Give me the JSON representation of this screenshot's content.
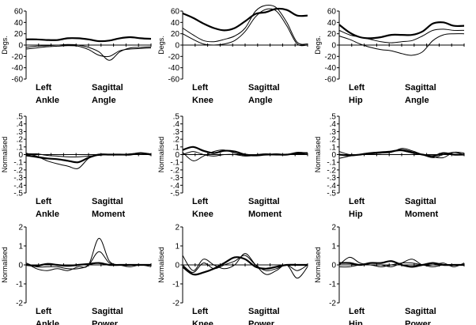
{
  "chart_data": [
    {
      "type": "line",
      "ylabel": "Degs.",
      "ylim": [
        -60,
        60
      ],
      "yticks": [
        60,
        40,
        20,
        0,
        -20,
        -40,
        -60
      ],
      "caption": [
        "Left",
        "Ankle",
        "Sagittal",
        "Angle"
      ],
      "series": [
        {
          "values": [
            10,
            10,
            9,
            9,
            12,
            12,
            10,
            7,
            8,
            12,
            14,
            12,
            11
          ]
        },
        {
          "values": [
            -4,
            -2,
            -1,
            0,
            1,
            0,
            -4,
            -12,
            -27,
            -12,
            -5,
            -4,
            -3
          ]
        },
        {
          "values": [
            -7,
            -5,
            -3,
            -2,
            -1,
            -2,
            -8,
            -18,
            -20,
            -10,
            -7,
            -6,
            -5
          ]
        }
      ]
    },
    {
      "type": "line",
      "ylabel": "Degs.",
      "ylim": [
        -60,
        60
      ],
      "yticks": [
        60,
        40,
        20,
        0,
        -20,
        -40,
        -60
      ],
      "caption": [
        "Left",
        "Knee",
        "Sagittal",
        "Angle"
      ],
      "series": [
        {
          "values": [
            56,
            48,
            38,
            30,
            26,
            30,
            42,
            55,
            58,
            64,
            62,
            52,
            52
          ]
        },
        {
          "values": [
            30,
            18,
            8,
            6,
            10,
            16,
            30,
            60,
            70,
            66,
            40,
            5,
            2
          ]
        },
        {
          "values": [
            20,
            10,
            2,
            0,
            2,
            8,
            24,
            50,
            63,
            60,
            34,
            2,
            0
          ]
        }
      ]
    },
    {
      "type": "line",
      "ylabel": "Degs.",
      "ylim": [
        -60,
        60
      ],
      "yticks": [
        60,
        40,
        20,
        0,
        -20,
        -40,
        -60
      ],
      "caption": [
        "Left",
        "Hip",
        "Sagittal",
        "Angle"
      ],
      "series": [
        {
          "values": [
            36,
            22,
            14,
            12,
            14,
            18,
            18,
            18,
            24,
            38,
            40,
            34,
            34
          ]
        },
        {
          "values": [
            16,
            10,
            2,
            -4,
            -8,
            -10,
            -15,
            -18,
            -12,
            8,
            18,
            20,
            20
          ]
        },
        {
          "values": [
            26,
            18,
            14,
            10,
            6,
            4,
            6,
            8,
            16,
            26,
            28,
            26,
            26
          ]
        }
      ]
    },
    {
      "type": "line",
      "ylabel": "Normalised",
      "ylim": [
        -0.5,
        0.5
      ],
      "yticks": [
        0.5,
        0.4,
        0.3,
        0.2,
        0.1,
        0.0,
        -0.1,
        -0.2,
        -0.3,
        -0.4,
        -0.5
      ],
      "caption": [
        "Left",
        "Ankle",
        "Sagittal",
        "Moment"
      ],
      "series": [
        {
          "values": [
            -0.01,
            -0.03,
            -0.05,
            -0.06,
            -0.08,
            -0.1,
            -0.04,
            0.0,
            0.0,
            0.0,
            0.0,
            0.02,
            0.0
          ]
        },
        {
          "values": [
            0.02,
            -0.02,
            -0.08,
            -0.12,
            -0.15,
            -0.18,
            -0.05,
            0.0,
            0.0,
            0.0,
            0.0,
            0.02,
            0.0
          ]
        },
        {
          "values": [
            0.01,
            0.01,
            -0.01,
            -0.02,
            -0.03,
            -0.03,
            -0.02,
            -0.01,
            0.0,
            0.0,
            0.01,
            0.02,
            0.01
          ]
        }
      ]
    },
    {
      "type": "line",
      "ylabel": "Normalised",
      "ylim": [
        -0.5,
        0.5
      ],
      "yticks": [
        0.5,
        0.4,
        0.3,
        0.2,
        0.1,
        0.0,
        -0.1,
        -0.2,
        -0.3,
        -0.4,
        -0.5
      ],
      "caption": [
        "Left",
        "Knee",
        "Sagittal",
        "Moment"
      ],
      "series": [
        {
          "values": [
            0.06,
            0.1,
            0.05,
            0.02,
            0.05,
            0.04,
            0.0,
            -0.01,
            0.0,
            0.0,
            0.0,
            0.02,
            0.02
          ]
        },
        {
          "values": [
            0.03,
            -0.08,
            -0.02,
            0.04,
            0.06,
            0.02,
            -0.01,
            0.0,
            0.01,
            0.0,
            0.0,
            0.03,
            0.02
          ]
        },
        {
          "values": [
            0.0,
            0.04,
            0.0,
            -0.02,
            0.0,
            0.0,
            -0.02,
            -0.01,
            0.0,
            0.01,
            0.0,
            0.01,
            0.0
          ]
        }
      ]
    },
    {
      "type": "line",
      "ylabel": "Normalised",
      "ylim": [
        -0.5,
        0.5
      ],
      "yticks": [
        0.5,
        0.4,
        0.3,
        0.2,
        0.1,
        0.0,
        -0.1,
        -0.2,
        -0.3,
        -0.4,
        -0.5
      ],
      "caption": [
        "Left",
        "Hip",
        "Sagittal",
        "Moment"
      ],
      "series": [
        {
          "values": [
            0.0,
            -0.01,
            0.0,
            0.02,
            0.03,
            0.04,
            0.06,
            0.03,
            0.0,
            -0.02,
            0.02,
            0.0,
            0.0
          ]
        },
        {
          "values": [
            -0.05,
            -0.02,
            0.0,
            0.01,
            0.02,
            0.03,
            0.08,
            0.05,
            0.0,
            -0.04,
            0.0,
            0.03,
            0.0
          ]
        },
        {
          "values": [
            0.04,
            0.0,
            0.0,
            0.01,
            0.02,
            0.04,
            0.05,
            0.02,
            0.0,
            -0.03,
            -0.04,
            0.03,
            0.02
          ]
        }
      ]
    },
    {
      "type": "line",
      "ylabel": "Normalised",
      "ylim": [
        -2,
        2
      ],
      "yticks": [
        2,
        1,
        0,
        -1,
        -2
      ],
      "caption": [
        "Left",
        "Ankle",
        "Sagittal",
        "Power"
      ],
      "series": [
        {
          "values": [
            0.0,
            -0.05,
            0.05,
            0.0,
            -0.05,
            0.0,
            0.05,
            0.1,
            0.0,
            0.0,
            0.0,
            0.0,
            0.0
          ]
        },
        {
          "values": [
            0.1,
            -0.2,
            -0.3,
            -0.2,
            -0.3,
            -0.1,
            0.0,
            1.4,
            0.2,
            0.0,
            -0.1,
            0.0,
            -0.1
          ]
        },
        {
          "values": [
            0.1,
            -0.1,
            -0.1,
            -0.1,
            -0.2,
            -0.2,
            0.0,
            0.7,
            0.1,
            0.0,
            0.0,
            0.0,
            0.0
          ]
        }
      ]
    },
    {
      "type": "line",
      "ylabel": "Normalised",
      "ylim": [
        -2,
        2
      ],
      "yticks": [
        2,
        1,
        0,
        -1,
        -2
      ],
      "caption": [
        "Left",
        "Knee",
        "Sagittal",
        "Power"
      ],
      "series": [
        {
          "values": [
            -0.1,
            -0.5,
            -0.4,
            -0.2,
            0.1,
            0.4,
            0.3,
            -0.1,
            -0.2,
            -0.1,
            0.0,
            0.0,
            0.0
          ]
        },
        {
          "values": [
            0.5,
            -0.3,
            0.3,
            0.0,
            -0.2,
            0.0,
            0.6,
            0.0,
            -0.5,
            -0.3,
            0.0,
            -0.7,
            -0.1
          ]
        },
        {
          "values": [
            0.0,
            -0.4,
            0.1,
            -0.2,
            0.0,
            0.2,
            0.5,
            0.0,
            -0.3,
            -0.2,
            0.0,
            -0.3,
            0.0
          ]
        }
      ]
    },
    {
      "type": "line",
      "ylabel": "Normalised",
      "ylim": [
        -2,
        2
      ],
      "yticks": [
        2,
        1,
        0,
        -1,
        -2
      ],
      "caption": [
        "Left",
        "Hip",
        "Sagittal",
        "Power"
      ],
      "series": [
        {
          "values": [
            0.1,
            0.1,
            0.0,
            0.1,
            0.1,
            0.2,
            0.0,
            -0.1,
            0.0,
            0.1,
            0.0,
            0.0,
            0.0
          ]
        },
        {
          "values": [
            0.0,
            0.4,
            0.1,
            0.0,
            0.0,
            -0.1,
            0.1,
            0.3,
            0.0,
            0.0,
            0.1,
            -0.1,
            0.1
          ]
        },
        {
          "values": [
            -0.1,
            -0.1,
            0.0,
            0.0,
            -0.1,
            0.0,
            0.1,
            0.1,
            0.0,
            -0.1,
            0.0,
            0.0,
            0.0
          ]
        }
      ]
    }
  ]
}
